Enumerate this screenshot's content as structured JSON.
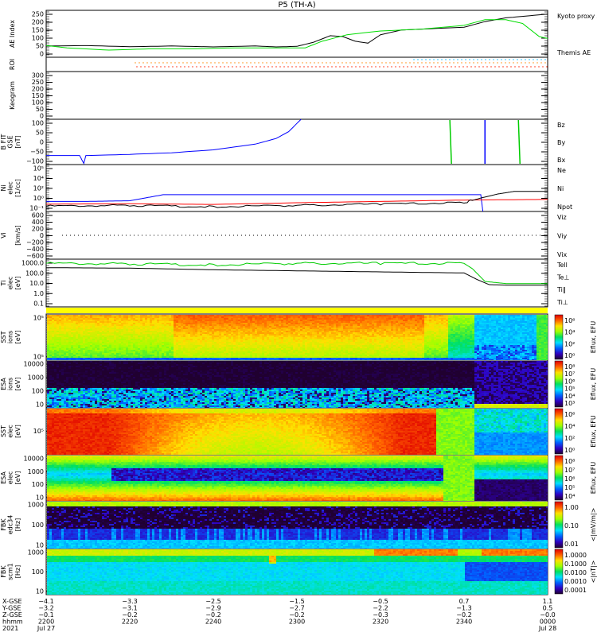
{
  "title": "P5 (TH-A)",
  "colors": {
    "kyoto": "#00dd00",
    "themis": "#000000",
    "red": "#ff0000",
    "green": "#00cc00",
    "blue": "#0000ff",
    "yellow": "#ffff00"
  },
  "panels": [
    {
      "id": "ae",
      "ylabel": "AE Index",
      "ticks": [
        "250",
        "200",
        "150",
        "100",
        "50",
        "0"
      ],
      "legend": [
        "Kyoto proxy AE",
        "Themis AE"
      ]
    },
    {
      "id": "roi",
      "ylabel": "ROI"
    },
    {
      "id": "keogram",
      "ylabel": "Keogram",
      "ticks": [
        "300",
        "250",
        "200",
        "150",
        "100",
        "50",
        "0"
      ]
    },
    {
      "id": "b",
      "ylabel": "B FIT",
      "ylabel2": "GSE",
      "ylabel3": "[nT]",
      "ticks": [
        "100",
        "50",
        "0",
        "−50",
        "−100"
      ],
      "legend": [
        "Bz",
        "By",
        "Bx"
      ]
    },
    {
      "id": "ni",
      "ylabel": "Ni",
      "ylabel2": "elec",
      "ylabel3": "[1/cc]",
      "ticks": [
        "10⁵",
        "10⁴",
        "10²",
        "10⁰",
        "10⁻¹"
      ],
      "legend": [
        "Ne",
        "Ni",
        "Npot"
      ]
    },
    {
      "id": "vi",
      "ylabel": "Vi",
      "ylabel3": "[km/s]",
      "ticks": [
        "600",
        "400",
        "200",
        "0",
        "−200",
        "−400",
        "−600"
      ],
      "legend": [
        "Viz",
        "Viy",
        "Vix"
      ]
    },
    {
      "id": "t",
      "ylabel": "Ti",
      "ylabel2": "elec",
      "ylabel3": "[eV]",
      "ticks": [
        "1000.0",
        "100.0",
        "10.0",
        "1.0",
        "0.1"
      ],
      "legend": [
        "Tell",
        "Te⊥",
        "Ti‖",
        "Ti⊥"
      ]
    },
    {
      "id": "sst_i",
      "ylabel": "SST",
      "ylabel3": "[eV]",
      "ylabel2": "ions",
      "ticks": [
        "10⁵",
        "10⁵"
      ],
      "cbar": [
        "10⁶",
        "10⁴",
        "10²",
        "10⁰"
      ],
      "cbar_label": "Eflux, EFU"
    },
    {
      "id": "esa_i",
      "ylabel": "ESA",
      "ylabel2": "ions",
      "ylabel3": "[eV]",
      "ticks": [
        "10000",
        "1000",
        "100",
        "10"
      ],
      "cbar": [
        "10⁸",
        "10⁷",
        "10⁶",
        "10⁵",
        "10⁴",
        "10³"
      ],
      "cbar_label": "Eflux, EFU"
    },
    {
      "id": "sst_e",
      "ylabel": "SST",
      "ylabel2": "elec",
      "ylabel3": "[eV]",
      "ticks": [
        "10⁵"
      ],
      "cbar": [
        "10⁶",
        "10⁴",
        "10²",
        "10⁰"
      ],
      "cbar_label": "Eflux, EFU"
    },
    {
      "id": "esa_e",
      "ylabel": "ESA",
      "ylabel2": "elec",
      "ylabel3": "[eV]",
      "ticks": [
        "10000",
        "1000",
        "100",
        "10"
      ],
      "cbar": [
        "10⁸",
        "10⁷",
        "10⁶",
        "10⁵",
        "10⁴"
      ],
      "cbar_label": "Eflux, EFU"
    },
    {
      "id": "fbk_e",
      "ylabel": "FBK",
      "ylabel2": "edc34",
      "ylabel3": "[Hz]",
      "ticks": [
        "1000",
        "100",
        "10"
      ],
      "cbar": [
        "1.00",
        "0.10",
        "0.01"
      ],
      "cbar_label": "<|mV/m|>"
    },
    {
      "id": "fbk_b",
      "ylabel": "FBK",
      "ylabel2": "scm1",
      "ylabel3": "[Hz]",
      "ticks": [
        "1000",
        "100",
        "10"
      ],
      "cbar": [
        "1.0000",
        "0.1000",
        "0.0100",
        "0.0010",
        "0.0001"
      ],
      "cbar_label": "<|nT|>"
    }
  ],
  "xaxis": {
    "row_labels": [
      "X-GSE",
      "Y-GSE",
      "Z-GSE",
      "hhmm",
      "2021"
    ],
    "ticks": [
      {
        "x": "−4.1",
        "y": "−3.2",
        "z": "−0.1",
        "hhmm": "2200",
        "date": "Jul 27"
      },
      {
        "x": "−3.3",
        "y": "−3.1",
        "z": "−0.2",
        "hhmm": "2220",
        "date": ""
      },
      {
        "x": "−2.5",
        "y": "−2.9",
        "z": "−0.2",
        "hhmm": "2240",
        "date": ""
      },
      {
        "x": "−1.5",
        "y": "−2.7",
        "z": "−0.2",
        "hhmm": "2300",
        "date": ""
      },
      {
        "x": "−0.5",
        "y": "−2.2",
        "z": "−0.3",
        "hhmm": "2320",
        "date": ""
      },
      {
        "x": "0.7",
        "y": "−1.3",
        "z": "−0.2",
        "hhmm": "2340",
        "date": ""
      },
      {
        "x": "1.1",
        "y": "0.5",
        "z": "−0.0",
        "hhmm": "0000",
        "date": "Jul 28"
      }
    ]
  },
  "chart_data": {
    "type": "line",
    "x_units": "minutes after 2021-07-27 22:00",
    "xlim": [
      0,
      120
    ],
    "series": [
      {
        "panel": "ae",
        "name": "Themis AE",
        "color": "#000000",
        "ylim": [
          0,
          250
        ],
        "x": [
          0,
          10,
          20,
          30,
          40,
          50,
          55,
          60,
          64,
          68,
          71,
          74,
          77,
          80,
          85,
          90,
          100,
          105,
          110,
          115,
          120
        ],
        "y": [
          60,
          62,
          56,
          60,
          55,
          60,
          55,
          58,
          80,
          115,
          110,
          85,
          75,
          120,
          145,
          150,
          160,
          190,
          210,
          220,
          230
        ]
      },
      {
        "panel": "ae",
        "name": "Kyoto proxy AE",
        "color": "#00dd00",
        "ylim": [
          0,
          250
        ],
        "x": [
          0,
          5,
          15,
          25,
          35,
          45,
          55,
          62,
          66,
          72,
          80,
          90,
          100,
          105,
          110,
          114,
          118,
          120
        ],
        "y": [
          62,
          50,
          38,
          45,
          45,
          50,
          50,
          50,
          85,
          120,
          140,
          150,
          170,
          200,
          200,
          180,
          110,
          100
        ]
      },
      {
        "panel": "b",
        "name": "Bx",
        "color": "#0000ff",
        "ylim": [
          -100,
          100
        ],
        "x": [
          0,
          8,
          9,
          9.5,
          10,
          20,
          30,
          40,
          50,
          55,
          58,
          61
        ],
        "y": [
          -60,
          -60,
          -95,
          -60,
          -60,
          -55,
          -48,
          -35,
          -10,
          15,
          45,
          100
        ]
      },
      {
        "panel": "ni",
        "name": "Npot",
        "color": "#0000ff",
        "ylim": [
          -1,
          6
        ],
        "x": [
          0,
          10,
          20,
          28,
          100,
          104,
          104.5
        ],
        "y": [
          0.5,
          0.5,
          0.6,
          1.5,
          1.5,
          1.5,
          -1
        ]
      },
      {
        "panel": "ni",
        "name": "Ne",
        "color": "#ff0000",
        "ylim": [
          -1,
          6
        ],
        "x": [
          0,
          20,
          40,
          60,
          80,
          100,
          120
        ],
        "y": [
          0.1,
          0.15,
          0.05,
          0.3,
          0.5,
          0.7,
          0.8
        ]
      },
      {
        "panel": "ni",
        "name": "Ni",
        "color": "#000000",
        "ylim": [
          -1,
          6
        ],
        "x": [
          0,
          20,
          40,
          60,
          80,
          100,
          104,
          108,
          112,
          120
        ],
        "y": [
          -0.2,
          -0.1,
          -0.3,
          -0.1,
          0.1,
          0.3,
          1.0,
          1.6,
          2.0,
          2.0
        ]
      },
      {
        "panel": "t",
        "name": "Tell",
        "color": "#00cc00",
        "ylim": [
          -1,
          3.5
        ],
        "x": [
          0,
          20,
          40,
          60,
          80,
          100,
          102,
          105,
          110,
          120
        ],
        "y": [
          3.1,
          3.05,
          2.95,
          3.1,
          3.1,
          3.1,
          2.6,
          1.4,
          1.2,
          1.2
        ]
      },
      {
        "panel": "t",
        "name": "Ti‖",
        "color": "#000000",
        "ylim": [
          -1,
          3.5
        ],
        "x": [
          0,
          20,
          40,
          60,
          80,
          100,
          103,
          106,
          110,
          120
        ],
        "y": [
          2.7,
          2.65,
          2.5,
          2.4,
          2.3,
          2.2,
          1.6,
          1.1,
          1.05,
          1.05
        ]
      }
    ]
  }
}
